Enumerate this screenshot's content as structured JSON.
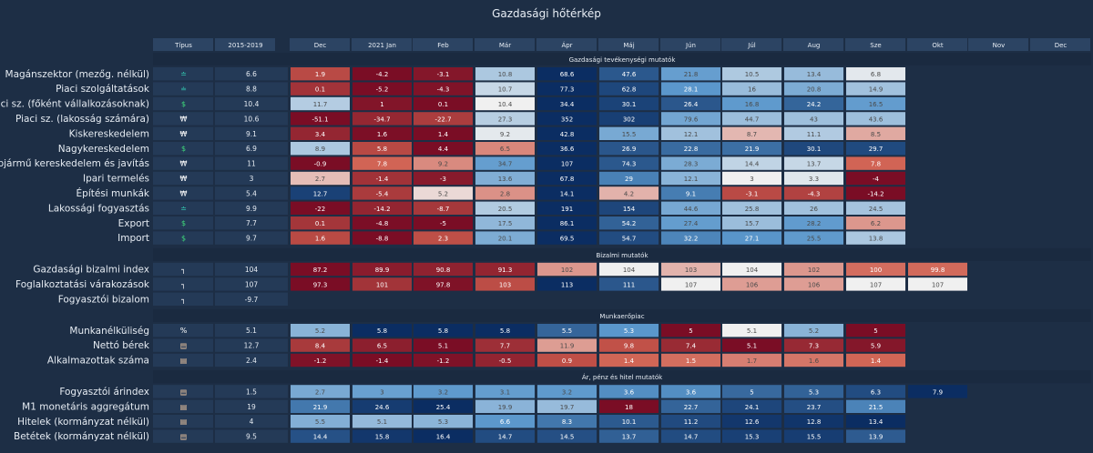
{
  "title": "Gazdasági hőtérkép",
  "chart_data": {
    "type": "heatmap",
    "title": "Gazdasági hőtérkép",
    "columns": [
      "Típus",
      "2015-2019",
      "Dec",
      "2021 Jan",
      "Feb",
      "Már",
      "Ápr",
      "Máj",
      "Jún",
      "Júl",
      "Aug",
      "Sze",
      "Okt",
      "Nov",
      "Dec"
    ],
    "sections": [
      {
        "name": "Gazdasági tevékenységi mutatók",
        "rows": [
          {
            "label": "Magánszektor (mezőg. nélkül)",
            "type_icon": "trend-icon",
            "avg": "6.6",
            "values": [
              "1.9",
              "-4.2",
              "-3.1",
              "10.8",
              "68.6",
              "47.6",
              "21.8",
              "10.5",
              "13.4",
              "6.8",
              null,
              null,
              null
            ]
          },
          {
            "label": "Piaci szolgáltatások",
            "type_icon": "trend-icon",
            "avg": "8.8",
            "values": [
              "0.1",
              "-5.2",
              "-4.3",
              "10.7",
              "77.3",
              "62.8",
              "28.1",
              "16",
              "20.8",
              "14.9",
              null,
              null,
              null
            ]
          },
          {
            "label": "Piaci sz. (főként vállalkozásoknak)",
            "type_icon": "dollar-icon",
            "avg": "10.4",
            "values": [
              "11.7",
              "1",
              "0.1",
              "10.4",
              "34.4",
              "30.1",
              "26.4",
              "16.8",
              "24.2",
              "16.5",
              null,
              null,
              null
            ]
          },
          {
            "label": "Piaci sz. (lakosság számára)",
            "type_icon": "weight-icon",
            "avg": "10.6",
            "values": [
              "-51.1",
              "-34.7",
              "-22.7",
              "27.3",
              "352",
              "302",
              "79.6",
              "44.7",
              "43",
              "43.6",
              null,
              null,
              null
            ]
          },
          {
            "label": "Kiskereskedelem",
            "type_icon": "weight-icon",
            "avg": "9.1",
            "values": [
              "3.4",
              "1.6",
              "1.4",
              "9.2",
              "42.8",
              "15.5",
              "12.1",
              "8.7",
              "11.1",
              "8.5",
              null,
              null,
              null
            ]
          },
          {
            "label": "Nagykereskedelem",
            "type_icon": "dollar-icon",
            "avg": "6.9",
            "values": [
              "8.9",
              "5.8",
              "4.4",
              "6.5",
              "36.6",
              "26.9",
              "22.8",
              "21.9",
              "30.1",
              "29.7",
              null,
              null,
              null
            ]
          },
          {
            "label": "Gépjármű kereskedelem és javítás",
            "type_icon": "weight-icon",
            "avg": "11",
            "values": [
              "-0.9",
              "7.8",
              "9.2",
              "34.7",
              "107",
              "74.3",
              "28.3",
              "14.4",
              "13.7",
              "7.8",
              null,
              null,
              null
            ]
          },
          {
            "label": "Ipari termelés",
            "type_icon": "weight-icon",
            "avg": "3",
            "values": [
              "2.7",
              "-1.4",
              "-3",
              "13.6",
              "67.8",
              "29",
              "12.1",
              "3",
              "3.3",
              "-4",
              null,
              null,
              null
            ]
          },
          {
            "label": "Építési munkák",
            "type_icon": "weight-icon",
            "avg": "5.4",
            "values": [
              "12.7",
              "-5.4",
              "5.2",
              "2.8",
              "14.1",
              "4.2",
              "9.1",
              "-3.1",
              "-4.3",
              "-14.2",
              null,
              null,
              null
            ]
          },
          {
            "label": "Lakossági fogyasztás",
            "type_icon": "trend-icon",
            "avg": "9.9",
            "values": [
              "-22",
              "-14.2",
              "-8.7",
              "20.5",
              "191",
              "154",
              "44.6",
              "25.8",
              "26",
              "24.5",
              null,
              null,
              null
            ]
          },
          {
            "label": "Export",
            "type_icon": "dollar-icon",
            "avg": "7.7",
            "values": [
              "0.1",
              "-4.8",
              "-5",
              "17.5",
              "86.1",
              "54.2",
              "27.4",
              "15.7",
              "28.2",
              "6.2",
              null,
              null,
              null
            ]
          },
          {
            "label": "Import",
            "type_icon": "dollar-icon",
            "avg": "9.7",
            "values": [
              "1.6",
              "-8.8",
              "2.3",
              "20.1",
              "69.5",
              "54.7",
              "32.2",
              "27.1",
              "25.5",
              "13.8",
              null,
              null,
              null
            ]
          }
        ]
      },
      {
        "name": "Bizalmi mutatók",
        "rows": [
          {
            "label": "Gazdasági bizalmi index",
            "type_icon": "corner-icon",
            "avg": "104",
            "values": [
              "87.2",
              "89.9",
              "90.8",
              "91.3",
              "102",
              "104",
              "103",
              "104",
              "102",
              "100",
              "99.8",
              null,
              null
            ]
          },
          {
            "label": "Foglalkoztatási várakozások",
            "type_icon": "corner-icon",
            "avg": "107",
            "values": [
              "97.3",
              "101",
              "97.8",
              "103",
              "113",
              "111",
              "107",
              "106",
              "106",
              "107",
              "107",
              null,
              null
            ]
          },
          {
            "label": "Fogyasztói bizalom",
            "type_icon": "corner-icon",
            "avg": "-9.7",
            "values": [
              null,
              null,
              null,
              null,
              null,
              null,
              null,
              null,
              null,
              null,
              null,
              null,
              null
            ]
          }
        ]
      },
      {
        "name": "Munkaerőpiac",
        "rows": [
          {
            "label": "Munkanélküliség",
            "type_icon": "percent-icon",
            "avg": "5.1",
            "values": [
              "5.2",
              "5.8",
              "5.8",
              "5.8",
              "5.5",
              "5.3",
              "5",
              "5.1",
              "5.2",
              "5",
              null,
              null,
              null
            ]
          },
          {
            "label": "Nettó bérek",
            "type_icon": "chart-icon",
            "avg": "12.7",
            "values": [
              "8.4",
              "6.5",
              "5.1",
              "7.7",
              "11.9",
              "9.8",
              "7.4",
              "5.1",
              "7.3",
              "5.9",
              null,
              null,
              null
            ]
          },
          {
            "label": "Alkalmazottak száma",
            "type_icon": "chart-icon",
            "avg": "2.4",
            "values": [
              "-1.2",
              "-1.4",
              "-1.2",
              "-0.5",
              "0.9",
              "1.4",
              "1.5",
              "1.7",
              "1.6",
              "1.4",
              null,
              null,
              null
            ]
          }
        ]
      },
      {
        "name": "Ár, pénz és hitel mutatók",
        "rows": [
          {
            "label": "Fogyasztói árindex",
            "type_icon": "chart-icon",
            "avg": "1.5",
            "values": [
              "2.7",
              "3",
              "3.2",
              "3.1",
              "3.2",
              "3.6",
              "3.6",
              "5",
              "5.3",
              "6.3",
              "7.9",
              null,
              null
            ]
          },
          {
            "label": "M1 monetáris aggregátum",
            "type_icon": "chart-icon",
            "avg": "19",
            "values": [
              "21.9",
              "24.6",
              "25.4",
              "19.9",
              "19.7",
              "18",
              "22.7",
              "24.1",
              "23.7",
              "21.5",
              null,
              null,
              null
            ]
          },
          {
            "label": "Hitelek (kormányzat nélkül)",
            "type_icon": "chart-icon",
            "avg": "4",
            "values": [
              "5.5",
              "5.1",
              "5.3",
              "6.6",
              "8.3",
              "10.1",
              "11.2",
              "12.6",
              "12.8",
              "13.4",
              null,
              null,
              null
            ]
          },
          {
            "label": "Betétek (kormányzat nélkül)",
            "type_icon": "chart-icon",
            "avg": "9.5",
            "values": [
              "14.4",
              "15.8",
              "16.4",
              "14.7",
              "14.5",
              "13.7",
              "14.7",
              "15.3",
              "15.5",
              "13.9",
              null,
              null,
              null
            ]
          }
        ]
      }
    ],
    "colors": {
      "background": "#1d2e45",
      "header_bg": "#2c4463",
      "type_bg": "#243a57",
      "section_bg": "#1a2a40",
      "below_avg_strong": "#7a0d25",
      "below_avg_mid": "#d06050",
      "neutral": "#f0f0f0",
      "above_avg_mid": "#5a97cc",
      "above_avg_strong": "#0b2d62"
    }
  }
}
